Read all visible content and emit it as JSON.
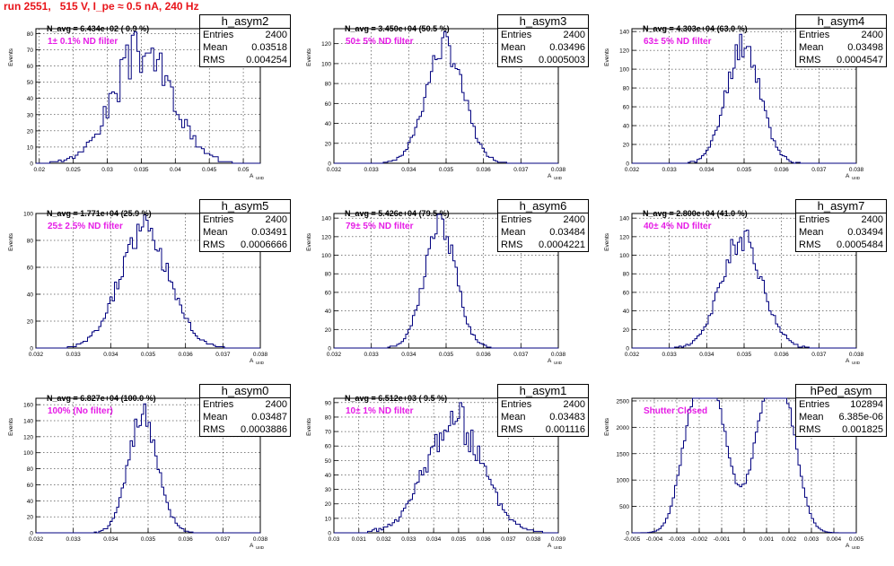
{
  "header": "run 2551,   515 V, I_pe ≈ 0.5 nA, 240 Hz",
  "colors": {
    "hist": "#00007f",
    "filter_text": "#e61ce6",
    "header_text": "#e8141a"
  },
  "stats_labels": {
    "entries": "Entries",
    "mean": "Mean",
    "rms": "RMS"
  },
  "ylabel": "Events",
  "xlabel": "A",
  "xlabel_sub": "UIID",
  "chart_data": [
    {
      "type": "histogram",
      "name": "h_asym2",
      "entries": "2400",
      "mean": "0.03518",
      "rms": "0.004254",
      "navg": "N_avg = 6.434e+02 ( 0.9 %)",
      "filter": "1± 0.1% ND filter",
      "xlim": [
        0.0195,
        0.0525
      ],
      "ylim": [
        0,
        83
      ],
      "xticks": [
        0.02,
        0.025,
        0.03,
        0.035,
        0.04,
        0.045,
        0.05
      ],
      "xticklabels": [
        "0.02",
        "0.025",
        "0.03",
        "0.035",
        "0.04",
        "0.045",
        "0.05"
      ],
      "yticks": [
        0,
        10,
        20,
        30,
        40,
        50,
        60,
        70,
        80
      ],
      "shape": {
        "kind": "gauss",
        "mu": 0.0352,
        "sigma": 0.00425,
        "peak": 70,
        "nbins": 80,
        "noise": 0.22,
        "seed": 3
      }
    },
    {
      "type": "histogram",
      "name": "h_asym3",
      "entries": "2400",
      "mean": "0.03496",
      "rms": "0.0005003",
      "navg": "N_avg = 3.450e+04 (50.5 %)",
      "filter": "50± 5% ND filter",
      "xlim": [
        0.032,
        0.038
      ],
      "ylim": [
        0,
        135
      ],
      "xticks": [
        0.032,
        0.033,
        0.034,
        0.035,
        0.036,
        0.037,
        0.038
      ],
      "xticklabels": [
        "0.032",
        "0.033",
        "0.034",
        "0.035",
        "0.036",
        "0.037",
        "0.038"
      ],
      "yticks": [
        0,
        20,
        40,
        60,
        80,
        100,
        120
      ],
      "shape": {
        "kind": "gauss",
        "mu": 0.03496,
        "sigma": 0.0005,
        "peak": 118,
        "nbins": 100,
        "noise": 0.12,
        "seed": 7
      }
    },
    {
      "type": "histogram",
      "name": "h_asym4",
      "entries": "2400",
      "mean": "0.03498",
      "rms": "0.0004547",
      "navg": "N_avg = 4.303e+04 (63.0 %)",
      "filter": "63± 5% ND filter",
      "xlim": [
        0.032,
        0.038
      ],
      "ylim": [
        0,
        143
      ],
      "xticks": [
        0.032,
        0.033,
        0.034,
        0.035,
        0.036,
        0.037,
        0.038
      ],
      "xticklabels": [
        "0.032",
        "0.033",
        "0.034",
        "0.035",
        "0.036",
        "0.037",
        "0.038"
      ],
      "yticks": [
        0,
        20,
        40,
        60,
        80,
        100,
        120,
        140
      ],
      "shape": {
        "kind": "gauss",
        "mu": 0.03498,
        "sigma": 0.00045,
        "peak": 128,
        "nbins": 100,
        "noise": 0.12,
        "seed": 11
      }
    },
    {
      "type": "histogram",
      "name": "h_asym5",
      "entries": "2400",
      "mean": "0.03491",
      "rms": "0.0006666",
      "navg": "N_avg = 1.771e+04 (25.9 %)",
      "filter": "25± 2.5% ND filter",
      "xlim": [
        0.032,
        0.038
      ],
      "ylim": [
        0,
        100
      ],
      "xticks": [
        0.032,
        0.033,
        0.034,
        0.035,
        0.036,
        0.037,
        0.038
      ],
      "xticklabels": [
        "0.032",
        "0.033",
        "0.034",
        "0.035",
        "0.036",
        "0.037",
        "0.038"
      ],
      "yticks": [
        0,
        20,
        40,
        60,
        80,
        100
      ],
      "shape": {
        "kind": "gauss",
        "mu": 0.03491,
        "sigma": 0.00066,
        "peak": 88,
        "nbins": 100,
        "noise": 0.14,
        "seed": 5
      }
    },
    {
      "type": "histogram",
      "name": "h_asym6",
      "entries": "2400",
      "mean": "0.03484",
      "rms": "0.0004221",
      "navg": "N_avg = 5.426e+04 (79.5 %)",
      "filter": "79± 5% ND filter",
      "xlim": [
        0.032,
        0.038
      ],
      "ylim": [
        0,
        145
      ],
      "xticks": [
        0.032,
        0.033,
        0.034,
        0.035,
        0.036,
        0.037,
        0.038
      ],
      "xticklabels": [
        "0.032",
        "0.033",
        "0.034",
        "0.035",
        "0.036",
        "0.037",
        "0.038"
      ],
      "yticks": [
        0,
        20,
        40,
        60,
        80,
        100,
        120,
        140
      ],
      "shape": {
        "kind": "gauss",
        "mu": 0.03484,
        "sigma": 0.00042,
        "peak": 133,
        "nbins": 100,
        "noise": 0.12,
        "seed": 13
      }
    },
    {
      "type": "histogram",
      "name": "h_asym7",
      "entries": "2400",
      "mean": "0.03494",
      "rms": "0.0005484",
      "navg": "N_avg = 2.800e+04 (41.0 %)",
      "filter": "40± 4% ND filter",
      "xlim": [
        0.032,
        0.038
      ],
      "ylim": [
        0,
        145
      ],
      "xticks": [
        0.032,
        0.033,
        0.034,
        0.035,
        0.036,
        0.037,
        0.038
      ],
      "xticklabels": [
        "0.032",
        "0.033",
        "0.034",
        "0.035",
        "0.036",
        "0.037",
        "0.038"
      ],
      "yticks": [
        0,
        20,
        40,
        60,
        80,
        100,
        120,
        140
      ],
      "shape": {
        "kind": "gauss",
        "mu": 0.03494,
        "sigma": 0.00055,
        "peak": 118,
        "nbins": 100,
        "noise": 0.13,
        "seed": 17
      }
    },
    {
      "type": "histogram",
      "name": "h_asym0",
      "entries": "2400",
      "mean": "0.03487",
      "rms": "0.0003886",
      "navg": "N_avg = 6.827e+04 (100.0 %)",
      "filter": "100% (No filter)",
      "xlim": [
        0.032,
        0.038
      ],
      "ylim": [
        0,
        168
      ],
      "xticks": [
        0.032,
        0.033,
        0.034,
        0.035,
        0.036,
        0.037,
        0.038
      ],
      "xticklabels": [
        "0.032",
        "0.033",
        "0.034",
        "0.035",
        "0.036",
        "0.037",
        "0.038"
      ],
      "yticks": [
        0,
        20,
        40,
        60,
        80,
        100,
        120,
        140,
        160
      ],
      "shape": {
        "kind": "gauss",
        "mu": 0.03487,
        "sigma": 0.00039,
        "peak": 148,
        "nbins": 100,
        "noise": 0.12,
        "seed": 19
      }
    },
    {
      "type": "histogram",
      "name": "h_asym1",
      "entries": "2400",
      "mean": "0.03483",
      "rms": "0.001116",
      "navg": "N_avg = 6.512e+03 ( 9.5 %)",
      "filter": "10± 1% ND filter",
      "xlim": [
        0.03,
        0.039
      ],
      "ylim": [
        0,
        93
      ],
      "xticks": [
        0.03,
        0.031,
        0.032,
        0.033,
        0.034,
        0.035,
        0.036,
        0.037,
        0.038,
        0.039
      ],
      "xticklabels": [
        "0.03",
        "0.031",
        "0.032",
        "0.033",
        "0.034",
        "0.035",
        "0.036",
        "0.037",
        "0.038",
        "0.039"
      ],
      "yticks": [
        0,
        10,
        20,
        30,
        40,
        50,
        60,
        70,
        80,
        90
      ],
      "shape": {
        "kind": "gauss",
        "mu": 0.03483,
        "sigma": 0.00112,
        "peak": 78,
        "nbins": 100,
        "noise": 0.18,
        "seed": 23
      }
    },
    {
      "type": "histogram",
      "name": "hPed_asym",
      "entries": "102894",
      "mean": "6.385e-06",
      "rms": "0.001825",
      "navg": "",
      "filter": "Shutter Closed",
      "xlim": [
        -0.005,
        0.005
      ],
      "ylim": [
        0,
        2550
      ],
      "xticks": [
        -0.005,
        -0.004,
        -0.003,
        -0.002,
        -0.001,
        0,
        0.001,
        0.002,
        0.003,
        0.004,
        0.005
      ],
      "xticklabels": [
        "-0.005",
        "-0.004",
        "-0.003",
        "-0.002",
        "-0.001",
        "0",
        "0.001",
        "0.002",
        "0.003",
        "0.004",
        "0.005"
      ],
      "yticks": [
        0,
        500,
        1000,
        1500,
        2000,
        2500
      ],
      "shape": {
        "kind": "ped",
        "nbins": 100,
        "noise": 0.04,
        "seed": 29
      }
    }
  ]
}
